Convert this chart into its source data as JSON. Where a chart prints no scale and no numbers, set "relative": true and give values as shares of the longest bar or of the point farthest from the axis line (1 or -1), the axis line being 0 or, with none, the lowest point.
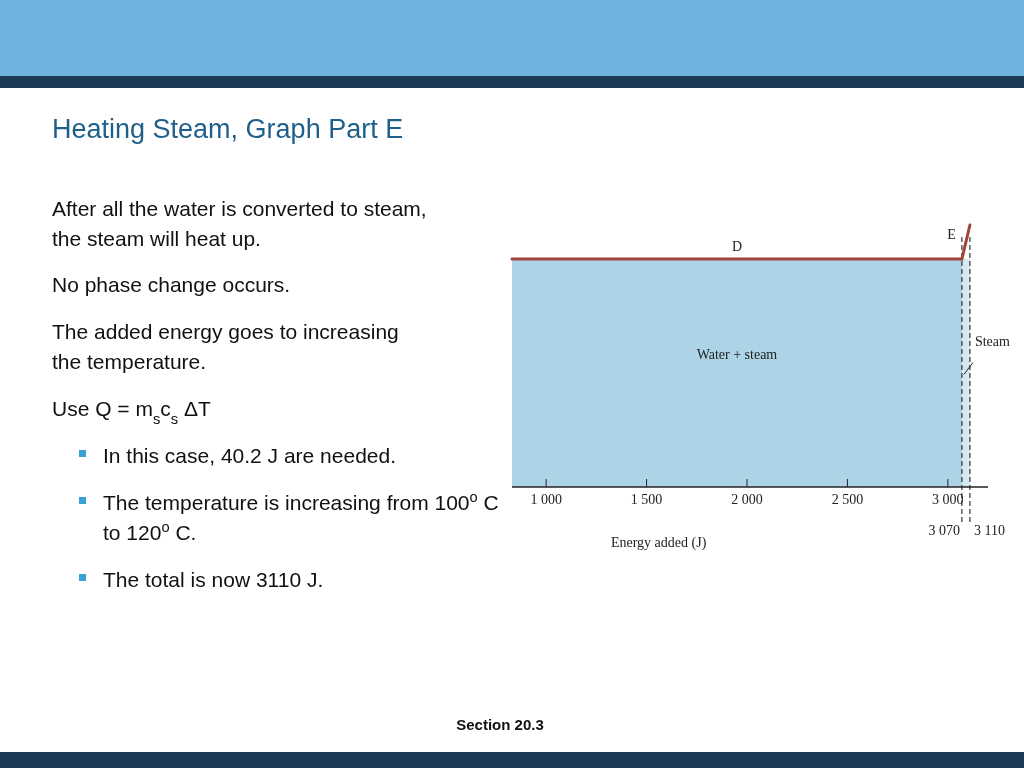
{
  "chart_data": {
    "type": "line",
    "title": "Heating Steam, Graph Part E",
    "xlabel": "Energy added (J)",
    "relative": true,
    "xlim": [
      830,
      3200
    ],
    "xticks": [
      {
        "value": 1000,
        "label": "1 000"
      },
      {
        "value": 1500,
        "label": "1 500"
      },
      {
        "value": 2000,
        "label": "2 000"
      },
      {
        "value": 2500,
        "label": "2 500"
      },
      {
        "value": 3000,
        "label": "3 000"
      }
    ],
    "series": [
      {
        "type": "area",
        "color": "#acd4e6",
        "x": [
          830,
          3070
        ],
        "values": [
          0.87,
          0.87
        ]
      },
      {
        "name": "D",
        "color": "#a0453a",
        "x": [
          830,
          3070
        ],
        "values": [
          0.87,
          0.87
        ]
      },
      {
        "name": "E",
        "color": "#a0453a",
        "x": [
          3070,
          3110
        ],
        "values": [
          0.87,
          1
        ]
      }
    ],
    "ref_lines": [
      {
        "axis": "x",
        "value": 3070,
        "label": "3 070",
        "line_style": "dashed",
        "color": "#333333"
      },
      {
        "axis": "x",
        "value": 3110,
        "label": "3 110",
        "line_style": "dashed",
        "color": "#333333"
      }
    ],
    "bands": [
      {
        "axis": "x",
        "from": 3070,
        "to": 3110,
        "label": "Steam",
        "color": "#d4e9f2"
      }
    ],
    "annotations": [
      "Water + steam",
      "After all the water is converted to steam, the steam will heat up.",
      "No phase change occurs.",
      "The added energy goes to increasing the temperature.",
      "Use Q = m$_{s}$c$_{s}$ ΔT",
      "In this case, 40.2 J are needed.",
      "The temperature is increasing from 100$^{o}$ C to 120$^{o}$ C.",
      "The total is now 3110 J.",
      "Section  20.3"
    ]
  }
}
